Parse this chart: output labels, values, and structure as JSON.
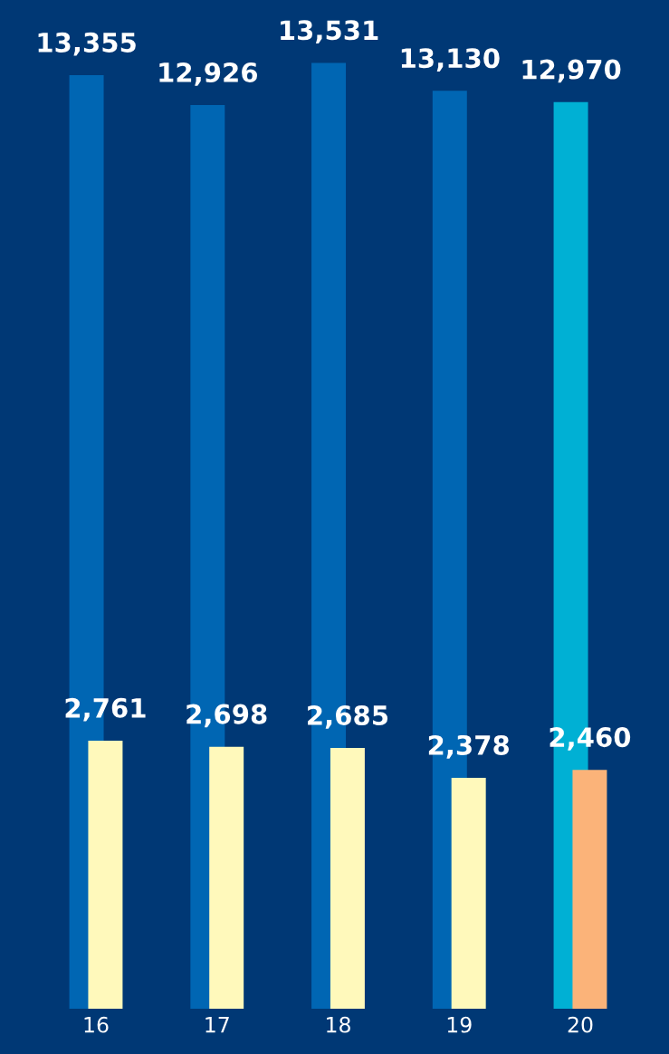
{
  "chart_data": {
    "type": "bar",
    "categories": [
      "16",
      "17",
      "18",
      "19",
      "20"
    ],
    "series": [
      {
        "colors": [
          "#0066b3",
          "#0066b3",
          "#0066b3",
          "#0066b3",
          "#00b0d4"
        ],
        "values": [
          13355,
          12926,
          13531,
          13130,
          12970
        ],
        "value_labels": [
          "13,355",
          "12,926",
          "13,531",
          "13,130",
          "12,970"
        ]
      },
      {
        "colors": [
          "#fff9bb",
          "#fff9bb",
          "#fff9bb",
          "#fff9bb",
          "#fbb379"
        ],
        "values": [
          2761,
          2698,
          2685,
          2378,
          2460
        ],
        "value_labels": [
          "2,761",
          "2,698",
          "2,685",
          "2,378",
          "2,460"
        ],
        "axis": "y2"
      }
    ],
    "ylim": [
      0,
      14430
    ],
    "y2lim": [
      0,
      10390
    ],
    "tick_labels": "x",
    "grid": false,
    "legend": false
  }
}
